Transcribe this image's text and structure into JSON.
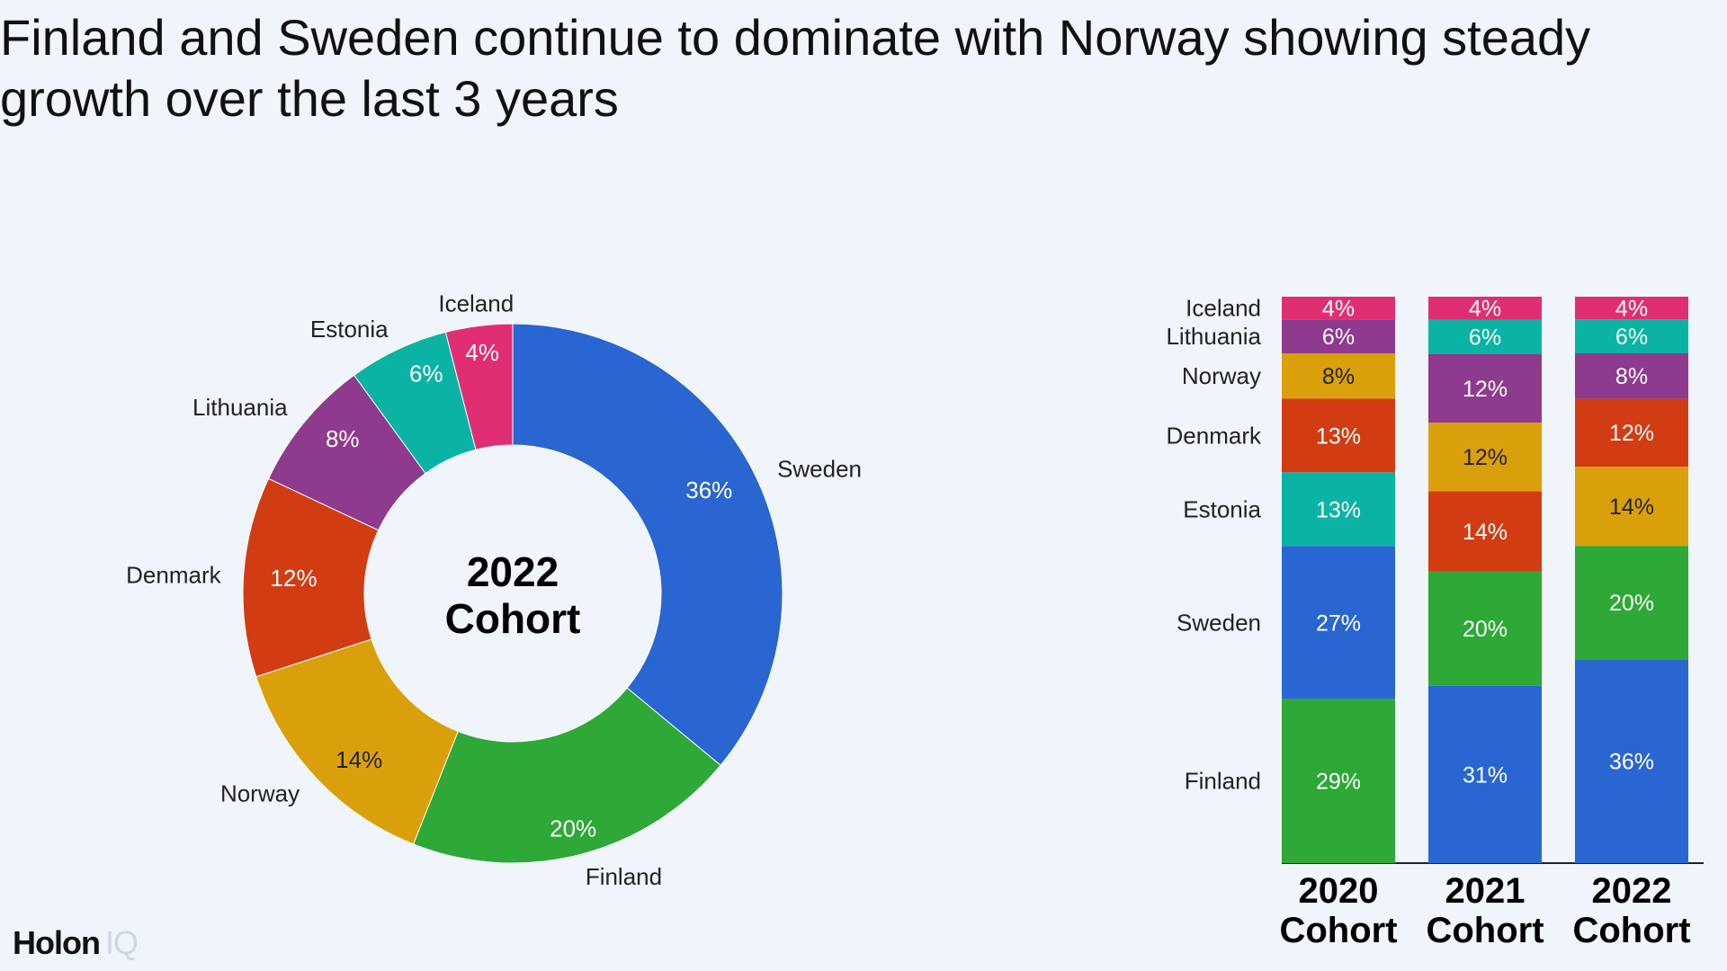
{
  "title": "Finland and Sweden continue to dominate with Norway showing steady growth over the last 3 years",
  "logo": {
    "main": "Holon",
    "suffix": "IQ"
  },
  "colors": {
    "Finland": "#2ea836",
    "Sweden": "#2a66d1",
    "Estonia": "#0bb3a5",
    "Denmark": "#d23c13",
    "Norway": "#daa00c",
    "Lithuania": "#8e3a8e",
    "Iceland": "#df2f72"
  },
  "chart_data": [
    {
      "type": "pie",
      "style": "donut",
      "center_label": [
        "2022",
        "Cohort"
      ],
      "slices": [
        {
          "label": "Sweden",
          "value": 36,
          "value_label": "36%"
        },
        {
          "label": "Finland",
          "value": 20,
          "value_label": "20%"
        },
        {
          "label": "Norway",
          "value": 14,
          "value_label": "14%"
        },
        {
          "label": "Denmark",
          "value": 12,
          "value_label": "12%"
        },
        {
          "label": "Lithuania",
          "value": 8,
          "value_label": "8%"
        },
        {
          "label": "Estonia",
          "value": 6,
          "value_label": "6%"
        },
        {
          "label": "Iceland",
          "value": 4,
          "value_label": "4%"
        }
      ]
    },
    {
      "type": "bar",
      "stacked": true,
      "normalized": true,
      "categories": [
        [
          "2020",
          "Cohort"
        ],
        [
          "2021",
          "Cohort"
        ],
        [
          "2022",
          "Cohort"
        ]
      ],
      "row_labels": [
        "Iceland",
        "Lithuania",
        "Norway",
        "Denmark",
        "Estonia",
        "Sweden",
        "Finland"
      ],
      "stacks": [
        [
          {
            "name": "Finland",
            "value": 29,
            "value_label": "29%"
          },
          {
            "name": "Sweden",
            "value": 27,
            "value_label": "27%"
          },
          {
            "name": "Estonia",
            "value": 13,
            "value_label": "13%"
          },
          {
            "name": "Denmark",
            "value": 13,
            "value_label": "13%"
          },
          {
            "name": "Norway",
            "value": 8,
            "value_label": "8%"
          },
          {
            "name": "Lithuania",
            "value": 6,
            "value_label": "6%"
          },
          {
            "name": "Iceland",
            "value": 4,
            "value_label": "4%"
          }
        ],
        [
          {
            "name": "Sweden",
            "value": 31,
            "value_label": "31%"
          },
          {
            "name": "Finland",
            "value": 20,
            "value_label": "20%"
          },
          {
            "name": "Denmark",
            "value": 14,
            "value_label": "14%"
          },
          {
            "name": "Norway",
            "value": 12,
            "value_label": "12%"
          },
          {
            "name": "Lithuania",
            "value": 12,
            "value_label": "12%"
          },
          {
            "name": "Estonia",
            "value": 6,
            "value_label": "6%"
          },
          {
            "name": "Iceland",
            "value": 4,
            "value_label": "4%"
          }
        ],
        [
          {
            "name": "Sweden",
            "value": 36,
            "value_label": "36%"
          },
          {
            "name": "Finland",
            "value": 20,
            "value_label": "20%"
          },
          {
            "name": "Norway",
            "value": 14,
            "value_label": "14%"
          },
          {
            "name": "Denmark",
            "value": 12,
            "value_label": "12%"
          },
          {
            "name": "Lithuania",
            "value": 8,
            "value_label": "8%"
          },
          {
            "name": "Estonia",
            "value": 6,
            "value_label": "6%"
          },
          {
            "name": "Iceland",
            "value": 4,
            "value_label": "4%"
          }
        ]
      ]
    }
  ]
}
